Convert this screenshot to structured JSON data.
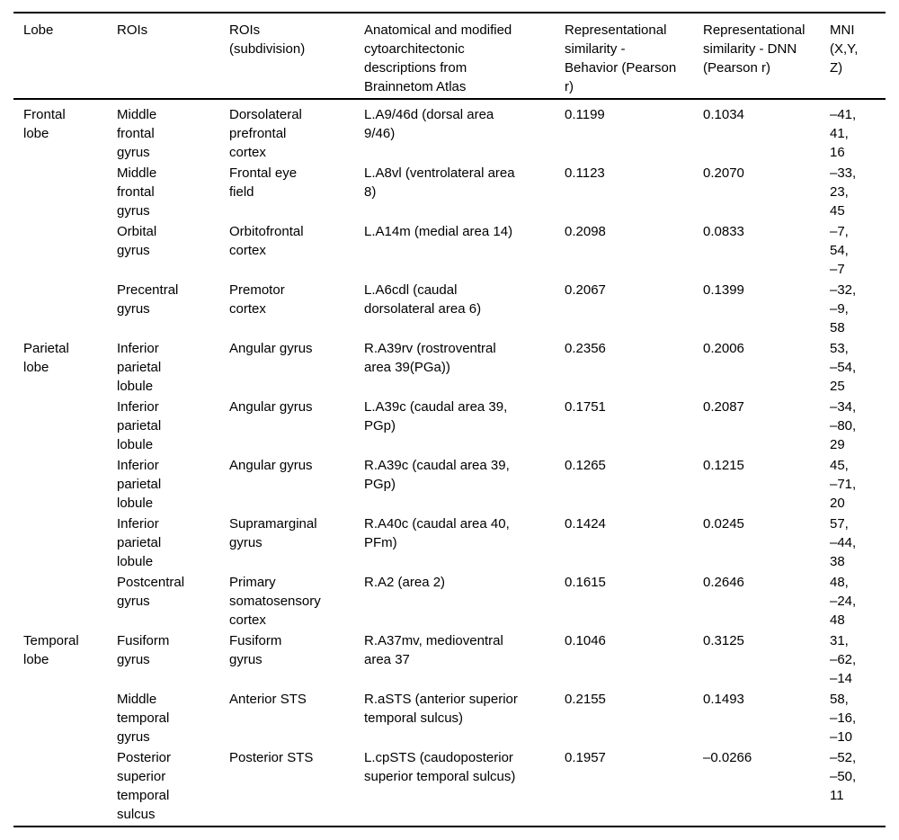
{
  "colors": {
    "background": "#ffffff",
    "text": "#000000",
    "rule": "#000000"
  },
  "table": {
    "columns": [
      {
        "key": "lobe",
        "label": "Lobe"
      },
      {
        "key": "roi",
        "label": "ROIs"
      },
      {
        "key": "roi_subdivision",
        "label": "ROIs\n(subdivision)"
      },
      {
        "key": "anatomical_description",
        "label": "Anatomical and modified\ncytoarchitectonic\ndescriptions from\nBrainnetom Atlas"
      },
      {
        "key": "rs_behavior",
        "label": "Representational\nsimilarity -\nBehavior (Pearson\nr)"
      },
      {
        "key": "rs_dnn",
        "label": "Representational\nsimilarity - DNN\n(Pearson r)"
      },
      {
        "key": "mni",
        "label": "MNI\n(X,Y,\nZ)"
      }
    ],
    "rows": [
      {
        "lobe": "Frontal\nlobe",
        "roi": "Middle\nfrontal\ngyrus",
        "roi_subdivision": "Dorsolateral\nprefrontal\ncortex",
        "anatomical_description": "L.A9/46d (dorsal area\n9/46)",
        "rs_behavior": "0.1199",
        "rs_dnn": "0.1034",
        "mni": "–41,\n41,\n16"
      },
      {
        "lobe": "",
        "roi": "Middle\nfrontal\ngyrus",
        "roi_subdivision": "Frontal eye\nfield",
        "anatomical_description": "L.A8vl (ventrolateral area\n8)",
        "rs_behavior": "0.1123",
        "rs_dnn": "0.2070",
        "mni": "–33,\n23,\n45"
      },
      {
        "lobe": "",
        "roi": "Orbital\ngyrus",
        "roi_subdivision": "Orbitofrontal\ncortex",
        "anatomical_description": "L.A14m (medial area 14)",
        "rs_behavior": "0.2098",
        "rs_dnn": "0.0833",
        "mni": "–7,\n54,\n–7"
      },
      {
        "lobe": "",
        "roi": "Precentral\ngyrus",
        "roi_subdivision": "Premotor\ncortex",
        "anatomical_description": "L.A6cdl (caudal\ndorsolateral area 6)",
        "rs_behavior": "0.2067",
        "rs_dnn": "0.1399",
        "mni": "–32,\n–9,\n58"
      },
      {
        "lobe": "Parietal\nlobe",
        "roi": "Inferior\nparietal\nlobule",
        "roi_subdivision": "Angular gyrus",
        "anatomical_description": "R.A39rv (rostroventral\narea 39(PGa))",
        "rs_behavior": "0.2356",
        "rs_dnn": "0.2006",
        "mni": "53,\n–54,\n25"
      },
      {
        "lobe": "",
        "roi": "Inferior\nparietal\nlobule",
        "roi_subdivision": "Angular gyrus",
        "anatomical_description": "L.A39c (caudal area 39,\nPGp)",
        "rs_behavior": "0.1751",
        "rs_dnn": "0.2087",
        "mni": "–34,\n–80,\n29"
      },
      {
        "lobe": "",
        "roi": "Inferior\nparietal\nlobule",
        "roi_subdivision": "Angular gyrus",
        "anatomical_description": "R.A39c (caudal area 39,\nPGp)",
        "rs_behavior": "0.1265",
        "rs_dnn": "0.1215",
        "mni": "45,\n–71,\n20"
      },
      {
        "lobe": "",
        "roi": "Inferior\nparietal\nlobule",
        "roi_subdivision": "Supramarginal\ngyrus",
        "anatomical_description": "R.A40c (caudal area 40,\nPFm)",
        "rs_behavior": "0.1424",
        "rs_dnn": "0.0245",
        "mni": "57,\n–44,\n38"
      },
      {
        "lobe": "",
        "roi": "Postcentral\ngyrus",
        "roi_subdivision": "Primary\nsomatosensory\ncortex",
        "anatomical_description": "R.A2 (area 2)",
        "rs_behavior": "0.1615",
        "rs_dnn": "0.2646",
        "mni": "48,\n–24,\n48"
      },
      {
        "lobe": "Temporal\nlobe",
        "roi": "Fusiform\ngyrus",
        "roi_subdivision": "Fusiform\ngyrus",
        "anatomical_description": "R.A37mv, medioventral\narea 37",
        "rs_behavior": "0.1046",
        "rs_dnn": "0.3125",
        "mni": "31,\n–62,\n–14"
      },
      {
        "lobe": "",
        "roi": "Middle\ntemporal\ngyrus",
        "roi_subdivision": "Anterior STS",
        "anatomical_description": "R.aSTS (anterior superior\ntemporal sulcus)",
        "rs_behavior": "0.2155",
        "rs_dnn": "0.1493",
        "mni": "58,\n–16,\n–10"
      },
      {
        "lobe": "",
        "roi": "Posterior\nsuperior\ntemporal\nsulcus",
        "roi_subdivision": "Posterior STS",
        "anatomical_description": "L.cpSTS (caudoposterior\nsuperior temporal sulcus)",
        "rs_behavior": "0.1957",
        "rs_dnn": "–0.0266",
        "mni": "–52,\n–50,\n11"
      }
    ]
  }
}
